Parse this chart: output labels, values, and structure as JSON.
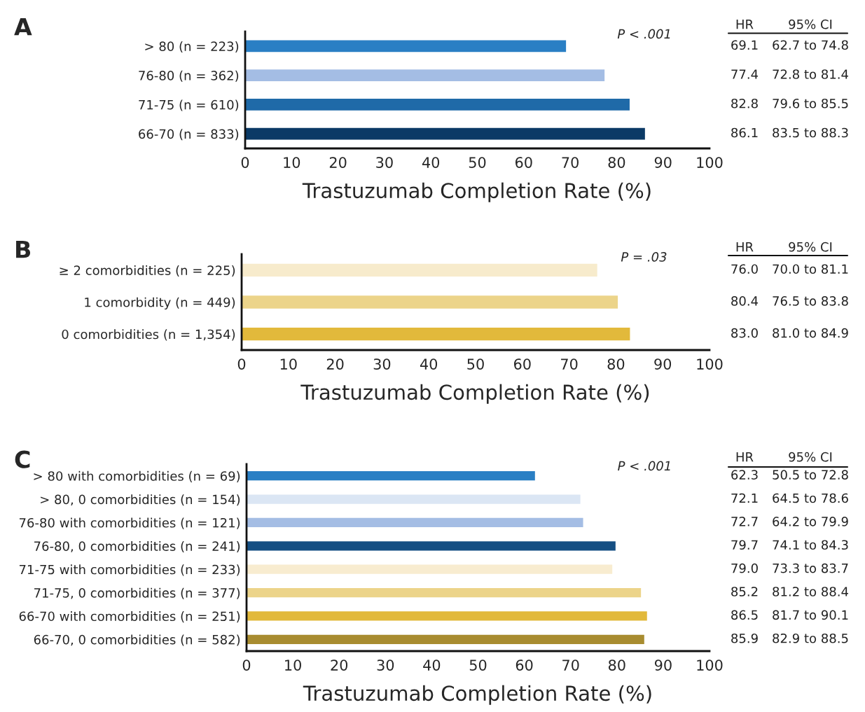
{
  "chart_data": [
    {
      "type": "bar",
      "orientation": "horizontal",
      "title": "A",
      "xlabel": "Trastuzumab Completion Rate (%)",
      "categories": [
        "> 80 (n = 223)",
        "76-80 (n = 362)",
        "71-75 (n = 610)",
        "66-70 (n = 833)"
      ],
      "values": [
        69.1,
        77.4,
        82.8,
        86.1
      ],
      "colors": [
        "#2a7fc4",
        "#a4bde4",
        "#1f6aa8",
        "#0b3a66"
      ],
      "value_labels": [
        "69.1",
        "77.4",
        "82.8",
        "86.1"
      ],
      "annotations": [
        "P < .001",
        "HR",
        "95% CI",
        "62.7 to 74.8",
        "72.8 to 81.4",
        "79.6 to 85.5",
        "83.5 to 88.3"
      ],
      "xlim": [
        0,
        100
      ],
      "xticks": [
        0,
        10,
        20,
        30,
        40,
        50,
        60,
        70,
        80,
        90,
        100
      ],
      "grid": false,
      "legend": false
    },
    {
      "type": "bar",
      "orientation": "horizontal",
      "title": "B",
      "xlabel": "Trastuzumab Completion Rate (%)",
      "categories": [
        "≥ 2 comorbidities (n = 225)",
        "1 comorbidity (n = 449)",
        "0 comorbidities (n = 1,354)"
      ],
      "values": [
        76.0,
        80.4,
        83.0
      ],
      "colors": [
        "#f7ebcc",
        "#ecd48a",
        "#e2b93b"
      ],
      "value_labels": [
        "76.0",
        "80.4",
        "83.0"
      ],
      "annotations": [
        "P = .03",
        "HR",
        "95% CI",
        "70.0 to 81.1",
        "76.5 to 83.8",
        "81.0 to 84.9"
      ],
      "xlim": [
        0,
        100
      ],
      "xticks": [
        0,
        10,
        20,
        30,
        40,
        50,
        60,
        70,
        80,
        90,
        100
      ],
      "grid": false,
      "legend": false
    },
    {
      "type": "bar",
      "orientation": "horizontal",
      "title": "C",
      "xlabel": "Trastuzumab Completion Rate (%)",
      "categories": [
        "> 80 with comorbidities (n = 69)",
        "> 80, 0 comorbidities (n = 154)",
        "76-80 with comorbidities (n = 121)",
        "76-80, 0 comorbidities (n = 241)",
        "71-75 with comorbidities (n = 233)",
        "71-75, 0 comorbidities (n = 377)",
        "66-70 with comorbidities (n = 251)",
        "66-70, 0 comorbidities (n = 582)"
      ],
      "values": [
        62.3,
        72.1,
        72.7,
        79.7,
        79.0,
        85.2,
        86.5,
        85.9
      ],
      "colors": [
        "#2a7fc4",
        "#dbe6f4",
        "#a4bde4",
        "#154f83",
        "#f8ecd0",
        "#ecd48a",
        "#e2b93b",
        "#a88c30"
      ],
      "value_labels": [
        "62.3",
        "72.1",
        "72.7",
        "79.7",
        "79.0",
        "85.2",
        "86.5",
        "85.9"
      ],
      "annotations": [
        "P < .001",
        "HR",
        "95% CI",
        "50.5 to 72.8",
        "64.5 to 78.6",
        "64.2 to 79.9",
        "74.1 to 84.3",
        "73.3 to 83.7",
        "81.2 to 88.4",
        "81.7 to 90.1",
        "82.9 to 88.5"
      ],
      "xlim": [
        0,
        100
      ],
      "xticks": [
        0,
        10,
        20,
        30,
        40,
        50,
        60,
        70,
        80,
        90,
        100
      ],
      "grid": false,
      "legend": false
    }
  ]
}
